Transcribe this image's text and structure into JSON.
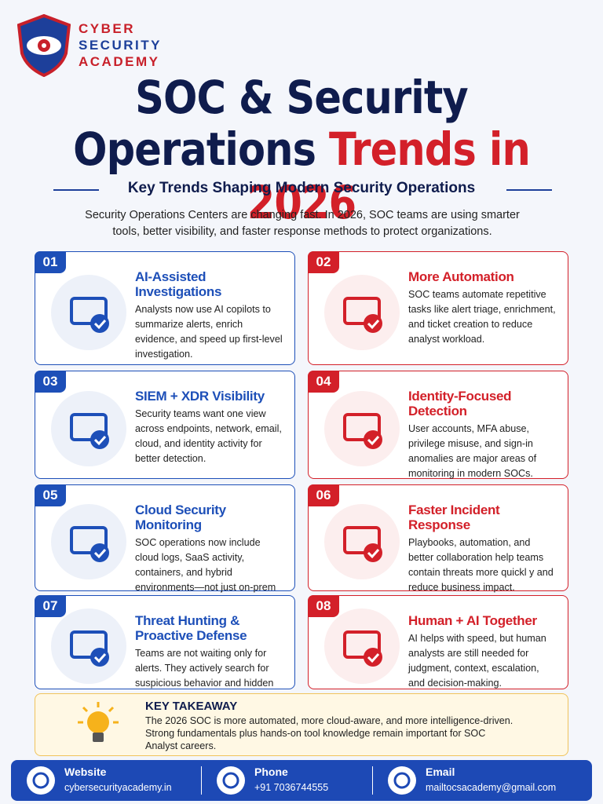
{
  "logo": {
    "lines": [
      "CYBER",
      "SECURITY",
      "ACADEMY"
    ]
  },
  "header": {
    "title_line1": "SOC & Security",
    "title_line2": "Operations",
    "title_highlight": "Trends in 2026",
    "subtitle": "Key Trends Shaping Modern Security Operations",
    "intro": "Security Operations Centers are changing fast. In 2026, SOC teams are using smarter tools, better visibility, and faster response methods to protect organizations."
  },
  "cards": [
    {
      "number": "01",
      "title": "AI-Assisted Investigations",
      "text": "Analysts now use AI copilots to summarize alerts, enrich evidence, and speed up first-level investigation.",
      "color": "#1d4fb8"
    },
    {
      "number": "02",
      "title": "More Automation",
      "text": "SOC teams automate repetitive tasks like alert triage, enrichment, and ticket creation to reduce analyst workload.",
      "color": "#d32029"
    },
    {
      "number": "03",
      "title": "SIEM + XDR Visibility",
      "text": "Security teams want one view across endpoints, network, email, cloud, and identity activity for better detection.",
      "color": "#1d4fb8"
    },
    {
      "number": "04",
      "title": "Identity-Focused Detection",
      "text": "User accounts, MFA abuse, privilege misuse, and sign-in anomalies are major areas of monitoring in modern SOCs.",
      "color": "#d32029"
    },
    {
      "number": "05",
      "title": "Cloud Security Monitoring",
      "text": "SOC operations now include cloud logs, SaaS activity, containers, and hybrid environments—not just on-prem systems.",
      "color": "#1d4fb8"
    },
    {
      "number": "06",
      "title": "Faster Incident Response",
      "text": "Playbooks, automation, and better collaboration help teams contain threats more quickl y and reduce business impact.",
      "color": "#d32029"
    },
    {
      "number": "07",
      "title": "Threat Hunting & Proactive Defense",
      "text": "Teams are not waiting only for alerts. They actively search for suspicious behavior and hidden threats.",
      "color": "#1d4fb8"
    },
    {
      "number": "08",
      "title": "Human + AI Together",
      "text": "AI helps with speed, but human analysts are still needed for judgment, context, escalation, and decision-making.",
      "color": "#d32029"
    }
  ],
  "takeaway": {
    "title": "KEY TAKEAWAY",
    "text": "The 2026 SOC is more automated, more cloud-aware, and more intelligence-driven. Strong fundamentals plus hands-on tool knowledge remain important for SOC Analyst careers."
  },
  "footer": [
    {
      "label": "Website",
      "value": "cybersecurityacademy.in"
    },
    {
      "label": "Phone",
      "value": "+91 7036744555"
    },
    {
      "label": "Email",
      "value": "mailtocsacademy@gmail.com"
    }
  ]
}
